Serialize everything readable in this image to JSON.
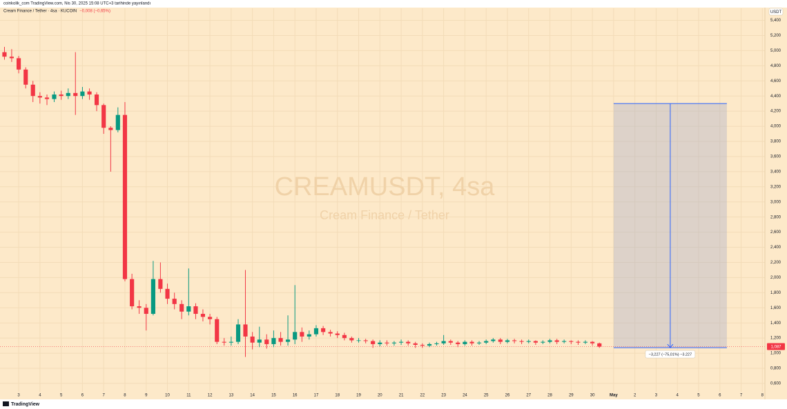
{
  "header": {
    "published": "coinkolik_com TradingView.com, Nis 30, 2025 15:08 UTC+3 tarihinde yayınlandı"
  },
  "chart_data": {
    "type": "candlestick",
    "title": "Cream Finance / Tether · 4sa · KUCOIN",
    "change": "−0,008 (−0,65%)",
    "watermark": "CREAMUSDT, 4sa",
    "watermark_subtitle": "Cream Finance / Tether",
    "currency": "USDT",
    "up_color": "#089981",
    "down_color": "#f23645",
    "x": [
      2.33,
      2.67,
      3,
      3.33,
      3.67,
      4,
      4.33,
      4.67,
      5,
      5.33,
      5.67,
      6,
      6.33,
      6.67,
      7,
      7.33,
      7.67,
      8,
      8.33,
      8.67,
      9,
      9.33,
      9.67,
      10,
      10.33,
      10.67,
      11,
      11.33,
      11.67,
      12,
      12.33,
      12.67,
      13,
      13.33,
      13.67,
      14,
      14.33,
      14.67,
      15,
      15.33,
      15.67,
      16,
      16.33,
      16.67,
      17,
      17.33,
      17.67,
      18,
      18.33,
      18.67,
      19,
      19.33,
      19.67,
      20,
      20.33,
      20.67,
      21,
      21.33,
      21.67,
      22,
      22.33,
      22.67,
      23,
      23.33,
      23.67,
      24,
      24.33,
      24.67,
      25,
      25.33,
      25.67,
      26,
      26.33,
      26.67,
      27,
      27.33,
      27.67,
      28,
      28.33,
      28.67,
      29,
      29.33,
      29.67,
      30,
      30.33
    ],
    "open": [
      4.98,
      4.92,
      4.9,
      4.75,
      4.55,
      4.4,
      4.38,
      4.36,
      4.42,
      4.4,
      4.44,
      4.4,
      4.46,
      4.42,
      4.28,
      3.98,
      3.95,
      4.15,
      1.98,
      1.62,
      1.6,
      1.52,
      1.98,
      1.85,
      1.72,
      1.65,
      1.55,
      1.62,
      1.52,
      1.48,
      1.45,
      1.15,
      1.14,
      1.15,
      1.38,
      1.22,
      1.14,
      1.18,
      1.12,
      1.2,
      1.15,
      1.18,
      1.28,
      1.22,
      1.25,
      1.33,
      1.28,
      1.26,
      1.24,
      1.2,
      1.17,
      1.17,
      1.16,
      1.12,
      1.14,
      1.13,
      1.14,
      1.15,
      1.13,
      1.11,
      1.1,
      1.12,
      1.13,
      1.16,
      1.14,
      1.12,
      1.15,
      1.13,
      1.14,
      1.16,
      1.18,
      1.15,
      1.17,
      1.16,
      1.15,
      1.16,
      1.14,
      1.15,
      1.17,
      1.15,
      1.16,
      1.15,
      1.14,
      1.15,
      1.13
    ],
    "high": [
      5.05,
      5.02,
      4.93,
      4.78,
      4.6,
      4.45,
      4.42,
      4.46,
      4.47,
      4.5,
      4.98,
      4.52,
      4.5,
      4.45,
      4.3,
      4,
      4.25,
      4.32,
      2.05,
      1.7,
      1.65,
      2.22,
      2.2,
      1.92,
      1.8,
      1.7,
      2.12,
      1.66,
      1.58,
      1.52,
      1.48,
      1.2,
      1.22,
      1.45,
      2.1,
      1.28,
      1.35,
      1.25,
      1.3,
      1.28,
      1.5,
      1.9,
      1.34,
      1.3,
      1.37,
      1.36,
      1.31,
      1.29,
      1.27,
      1.22,
      1.2,
      1.19,
      1.18,
      1.17,
      1.17,
      1.16,
      1.18,
      1.17,
      1.15,
      1.13,
      1.14,
      1.15,
      1.24,
      1.18,
      1.16,
      1.17,
      1.17,
      1.16,
      1.18,
      1.2,
      1.2,
      1.19,
      1.19,
      1.18,
      1.18,
      1.17,
      1.17,
      1.19,
      1.19,
      1.18,
      1.17,
      1.17,
      1.17,
      1.16,
      1.14
    ],
    "low": [
      4.88,
      4.85,
      4.7,
      4.5,
      4.32,
      4.3,
      4.28,
      4.32,
      4.35,
      4.36,
      4.15,
      4.36,
      4.35,
      4.2,
      3.9,
      3.4,
      3.92,
      1.95,
      1.58,
      1.52,
      1.3,
      1.5,
      1.8,
      1.65,
      1.58,
      1.45,
      1.5,
      1.45,
      1.42,
      1.38,
      1.12,
      1.1,
      1.1,
      1.12,
      0.95,
      1.05,
      1.08,
      1.06,
      1.08,
      1.1,
      1.1,
      1.12,
      1.15,
      1.18,
      1.22,
      1.24,
      1.22,
      1.2,
      1.17,
      1.14,
      1.14,
      1.13,
      1.07,
      1.09,
      1.1,
      1.1,
      1.11,
      1.1,
      1.07,
      1.07,
      1.08,
      1.1,
      1.11,
      1.11,
      1.08,
      1.1,
      1.1,
      1.11,
      1.12,
      1.14,
      1.12,
      1.13,
      1.13,
      1.12,
      1.13,
      1.11,
      1.12,
      1.13,
      1.12,
      1.13,
      1.12,
      1.11,
      1.12,
      1.1,
      1.07
    ],
    "close": [
      4.92,
      4.9,
      4.75,
      4.55,
      4.4,
      4.38,
      4.36,
      4.42,
      4.4,
      4.44,
      4.4,
      4.46,
      4.42,
      4.28,
      3.98,
      3.95,
      4.15,
      1.98,
      1.62,
      1.6,
      1.52,
      1.98,
      1.85,
      1.72,
      1.65,
      1.55,
      1.62,
      1.52,
      1.48,
      1.45,
      1.15,
      1.14,
      1.15,
      1.38,
      1.22,
      1.14,
      1.18,
      1.12,
      1.2,
      1.15,
      1.18,
      1.28,
      1.22,
      1.25,
      1.33,
      1.28,
      1.26,
      1.24,
      1.2,
      1.17,
      1.17,
      1.16,
      1.12,
      1.14,
      1.13,
      1.14,
      1.15,
      1.13,
      1.11,
      1.1,
      1.12,
      1.13,
      1.16,
      1.14,
      1.12,
      1.15,
      1.13,
      1.14,
      1.16,
      1.18,
      1.15,
      1.17,
      1.16,
      1.15,
      1.16,
      1.14,
      1.15,
      1.17,
      1.15,
      1.16,
      1.15,
      1.14,
      1.15,
      1.13,
      1.087
    ],
    "xlim": [
      2.12,
      38.12
    ],
    "xticks": [
      3,
      4,
      5,
      6,
      7,
      8,
      9,
      10,
      11,
      12,
      13,
      14,
      15,
      16,
      17,
      18,
      19,
      20,
      21,
      22,
      23,
      24,
      25,
      26,
      27,
      28,
      29,
      30,
      {
        "value": 31,
        "label": "May"
      },
      {
        "value": 32,
        "label": "2"
      },
      {
        "value": 33,
        "label": "3"
      },
      {
        "value": 34,
        "label": "4"
      },
      {
        "value": 35,
        "label": "5"
      },
      {
        "value": 36,
        "label": "6"
      },
      {
        "value": 37,
        "label": "7"
      },
      {
        "value": 38,
        "label": "8"
      }
    ],
    "ylim": [
      0.49,
      5.56
    ],
    "yticks": [
      {
        "value": 0.6,
        "label": "0,600"
      },
      {
        "value": 0.8,
        "label": "0,800"
      },
      {
        "value": 1.0,
        "label": "1,000"
      },
      {
        "value": 1.2,
        "label": "1,200"
      },
      {
        "value": 1.4,
        "label": "1,400"
      },
      {
        "value": 1.6,
        "label": "1,600"
      },
      {
        "value": 1.8,
        "label": "1,800"
      },
      {
        "value": 2.0,
        "label": "2,000"
      },
      {
        "value": 2.2,
        "label": "2,200"
      },
      {
        "value": 2.4,
        "label": "2,400"
      },
      {
        "value": 2.6,
        "label": "2,600"
      },
      {
        "value": 2.8,
        "label": "2,800"
      },
      {
        "value": 3.0,
        "label": "3,000"
      },
      {
        "value": 3.2,
        "label": "3,200"
      },
      {
        "value": 3.4,
        "label": "3,400"
      },
      {
        "value": 3.6,
        "label": "3,600"
      },
      {
        "value": 3.8,
        "label": "3,800"
      },
      {
        "value": 4.0,
        "label": "4,000"
      },
      {
        "value": 4.2,
        "label": "4,200"
      },
      {
        "value": 4.4,
        "label": "4,400"
      },
      {
        "value": 4.6,
        "label": "4,600"
      },
      {
        "value": 4.8,
        "label": "4,800"
      },
      {
        "value": 5.0,
        "label": "5,000"
      },
      {
        "value": 5.2,
        "label": "5,200"
      },
      {
        "value": 5.4,
        "label": "5,400"
      }
    ],
    "grid": true,
    "last_price": {
      "value": 1.087,
      "label": "1,087"
    },
    "measure": {
      "x_start": 31,
      "x_end": 36.33,
      "top": 4.3,
      "bottom": 1.073,
      "label": "−3,227 (−75,01%) −3.227"
    }
  },
  "footer": {
    "logo": "TradingView"
  }
}
